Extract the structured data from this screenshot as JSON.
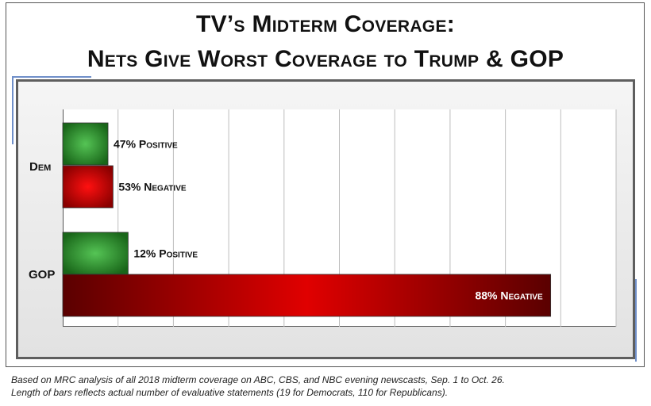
{
  "header": {
    "title_line1": "TV’s Midterm Coverage:",
    "title_line2": "Nets Give Worst Coverage to Trump & GOP"
  },
  "footnotes": {
    "line1": "Based on MRC analysis of all 2018 midterm coverage on ABC, CBS, and NBC evening newscasts, Sep. 1 to Oct. 26.",
    "line2": "Length of bars reflects actual number of evaluative statements (19 for Democrats, 110 for Republicans)."
  },
  "colors": {
    "positive": "#2e9c2e",
    "negative": "#d40000",
    "frame": "#5e5e5e",
    "accent": "#6f8fc9"
  },
  "chart_data": {
    "type": "bar",
    "orientation": "horizontal",
    "categories": [
      "Dem",
      "GOP"
    ],
    "grid": true,
    "xlim": [
      0,
      110
    ],
    "bars": [
      {
        "category": "Dem",
        "kind": "positive",
        "value": 9,
        "label": "47% Positive"
      },
      {
        "category": "Dem",
        "kind": "negative",
        "value": 10,
        "label": "53% Negative"
      },
      {
        "category": "GOP",
        "kind": "positive",
        "value": 13,
        "label": "12% Positive"
      },
      {
        "category": "GOP",
        "kind": "negative",
        "value": 97,
        "label": "88% Negative"
      }
    ]
  }
}
